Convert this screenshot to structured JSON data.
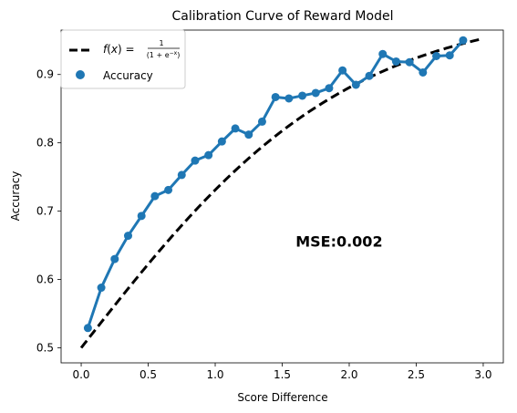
{
  "chart_data": {
    "type": "line",
    "title": "Calibration Curve of Reward Model",
    "xlabel": "Score Difference",
    "ylabel": "Accuracy",
    "xlim": [
      -0.15,
      3.15
    ],
    "ylim": [
      0.478,
      0.965
    ],
    "xticks": [
      0.0,
      0.5,
      1.0,
      1.5,
      2.0,
      2.5,
      3.0
    ],
    "xtick_labels": [
      "0.0",
      "0.5",
      "1.0",
      "1.5",
      "2.0",
      "2.5",
      "3.0"
    ],
    "yticks": [
      0.5,
      0.6,
      0.7,
      0.8,
      0.9
    ],
    "ytick_labels": [
      "0.5",
      "0.6",
      "0.7",
      "0.8",
      "0.9"
    ],
    "grid": false,
    "legend_position": "top-left",
    "series": [
      {
        "name": "f(x) = 1/(1 + e^(-x))",
        "kind": "dashed-line",
        "color": "#000000",
        "formula": "1/(1+exp(-x))",
        "x_range": [
          0.0,
          3.0
        ]
      },
      {
        "name": "Accuracy",
        "kind": "line-with-markers",
        "color": "#1f77b4",
        "x": [
          0.05,
          0.15,
          0.25,
          0.35,
          0.45,
          0.55,
          0.65,
          0.75,
          0.85,
          0.95,
          1.05,
          1.15,
          1.25,
          1.35,
          1.45,
          1.55,
          1.65,
          1.75,
          1.85,
          1.95,
          2.05,
          2.15,
          2.25,
          2.35,
          2.45,
          2.55,
          2.65,
          2.75,
          2.85
        ],
        "y": [
          0.529,
          0.588,
          0.63,
          0.664,
          0.693,
          0.722,
          0.731,
          0.753,
          0.774,
          0.782,
          0.802,
          0.821,
          0.812,
          0.831,
          0.867,
          0.865,
          0.869,
          0.873,
          0.88,
          0.906,
          0.885,
          0.898,
          0.93,
          0.919,
          0.918,
          0.903,
          0.927,
          0.928,
          0.95
        ]
      }
    ],
    "legend": {
      "sigmoid_label": {
        "prefix": "f(x) = ",
        "numerator": "1",
        "denominator": "(1 + e^-x)"
      },
      "accuracy_label": "Accuracy"
    },
    "annotation": {
      "text": "MSE:0.002",
      "x": 1.6,
      "y": 0.648
    }
  }
}
